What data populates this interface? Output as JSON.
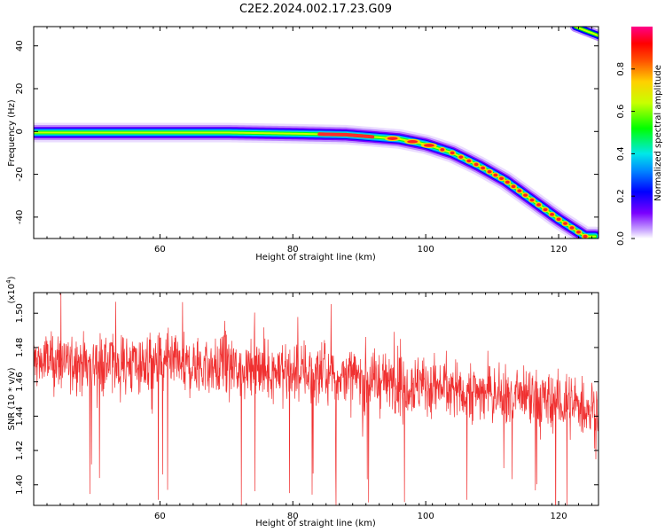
{
  "title": "C2E2.2024.002.17.23.G09",
  "chart_data": [
    {
      "type": "heatmap",
      "xlabel": "Height of straight line (km)",
      "ylabel": "Frequency (Hz)",
      "xlim": [
        41,
        126
      ],
      "ylim": [
        -50,
        49
      ],
      "x_ticks": [
        "60",
        "80",
        "100",
        "120"
      ],
      "y_ticks": [
        "40",
        "20",
        "0",
        "-20",
        "-40"
      ],
      "ridge": {
        "x": [
          41,
          50,
          60,
          70,
          80,
          88,
          92,
          96,
          100,
          104,
          108,
          112,
          116,
          120,
          124
        ],
        "y": [
          -0.5,
          -0.5,
          -0.5,
          -0.5,
          -1,
          -1.5,
          -2.5,
          -3.5,
          -6,
          -10,
          -16,
          -23,
          -32,
          -41,
          -49
        ]
      },
      "colorbar": {
        "label": "Normalized spectral amplitude",
        "range": [
          0,
          1
        ],
        "ticks": [
          "0.0",
          "0.2",
          "0.4",
          "0.6",
          "0.8"
        ]
      }
    },
    {
      "type": "line",
      "xlabel": "Height of straight line (km)",
      "ylabel": "SNR (10 * v/v)",
      "y_multiplier": "(x10",
      "y_multiplier_exp": "4",
      "xlim": [
        41,
        126
      ],
      "ylim": [
        1.388,
        1.512
      ],
      "x_ticks": [
        "60",
        "80",
        "100",
        "120"
      ],
      "y_ticks": [
        "1.50",
        "1.48",
        "1.46",
        "1.44",
        "1.42",
        "1.40"
      ],
      "series": [
        {
          "color": "#f03030",
          "trend_x": [
            41,
            60,
            80,
            100,
            115,
            126
          ],
          "trend_y": [
            1.472,
            1.47,
            1.466,
            1.458,
            1.45,
            1.444
          ]
        }
      ]
    }
  ]
}
